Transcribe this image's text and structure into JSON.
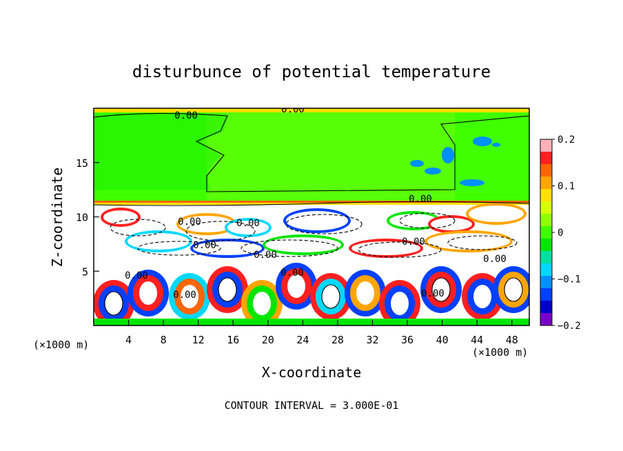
{
  "chart_data": {
    "type": "heatmap",
    "title": "disturbunce of potential temperature",
    "xlabel": "X-coordinate",
    "ylabel": "Z-coordinate",
    "x_unit_left": "(×1000 m)",
    "x_unit_right": "(×1000 m)",
    "xlim": [
      0,
      50
    ],
    "ylim": [
      0,
      20
    ],
    "xticks": [
      4,
      8,
      12,
      16,
      20,
      24,
      28,
      32,
      36,
      40,
      44,
      48
    ],
    "yticks": [
      5,
      10,
      15
    ],
    "colorbar": {
      "range": [
        -0.2,
        0.2
      ],
      "tick_labels": [
        "0.2",
        "0.1",
        "0",
        "−0.1",
        "−0.2"
      ],
      "tick_values": [
        0.2,
        0.1,
        0,
        -0.1,
        -0.2
      ],
      "colors": [
        "#ffb0b8",
        "#ff2020",
        "#ff6600",
        "#ffa500",
        "#ffe000",
        "#d8ff00",
        "#90ff00",
        "#40ff00",
        "#00e600",
        "#00e0a0",
        "#00d8ff",
        "#0090ff",
        "#0040ff",
        "#0000c8",
        "#7a00c8"
      ]
    },
    "contour_labels": [
      "0.00",
      "0.00",
      "0.00",
      "0.00",
      "0.00",
      "0.00",
      "0.00",
      "0.00",
      "0.00",
      "0.00",
      "0.00",
      "0.00",
      "0.00"
    ],
    "footer": "CONTOUR INTERVAL = 3.000E-01"
  }
}
